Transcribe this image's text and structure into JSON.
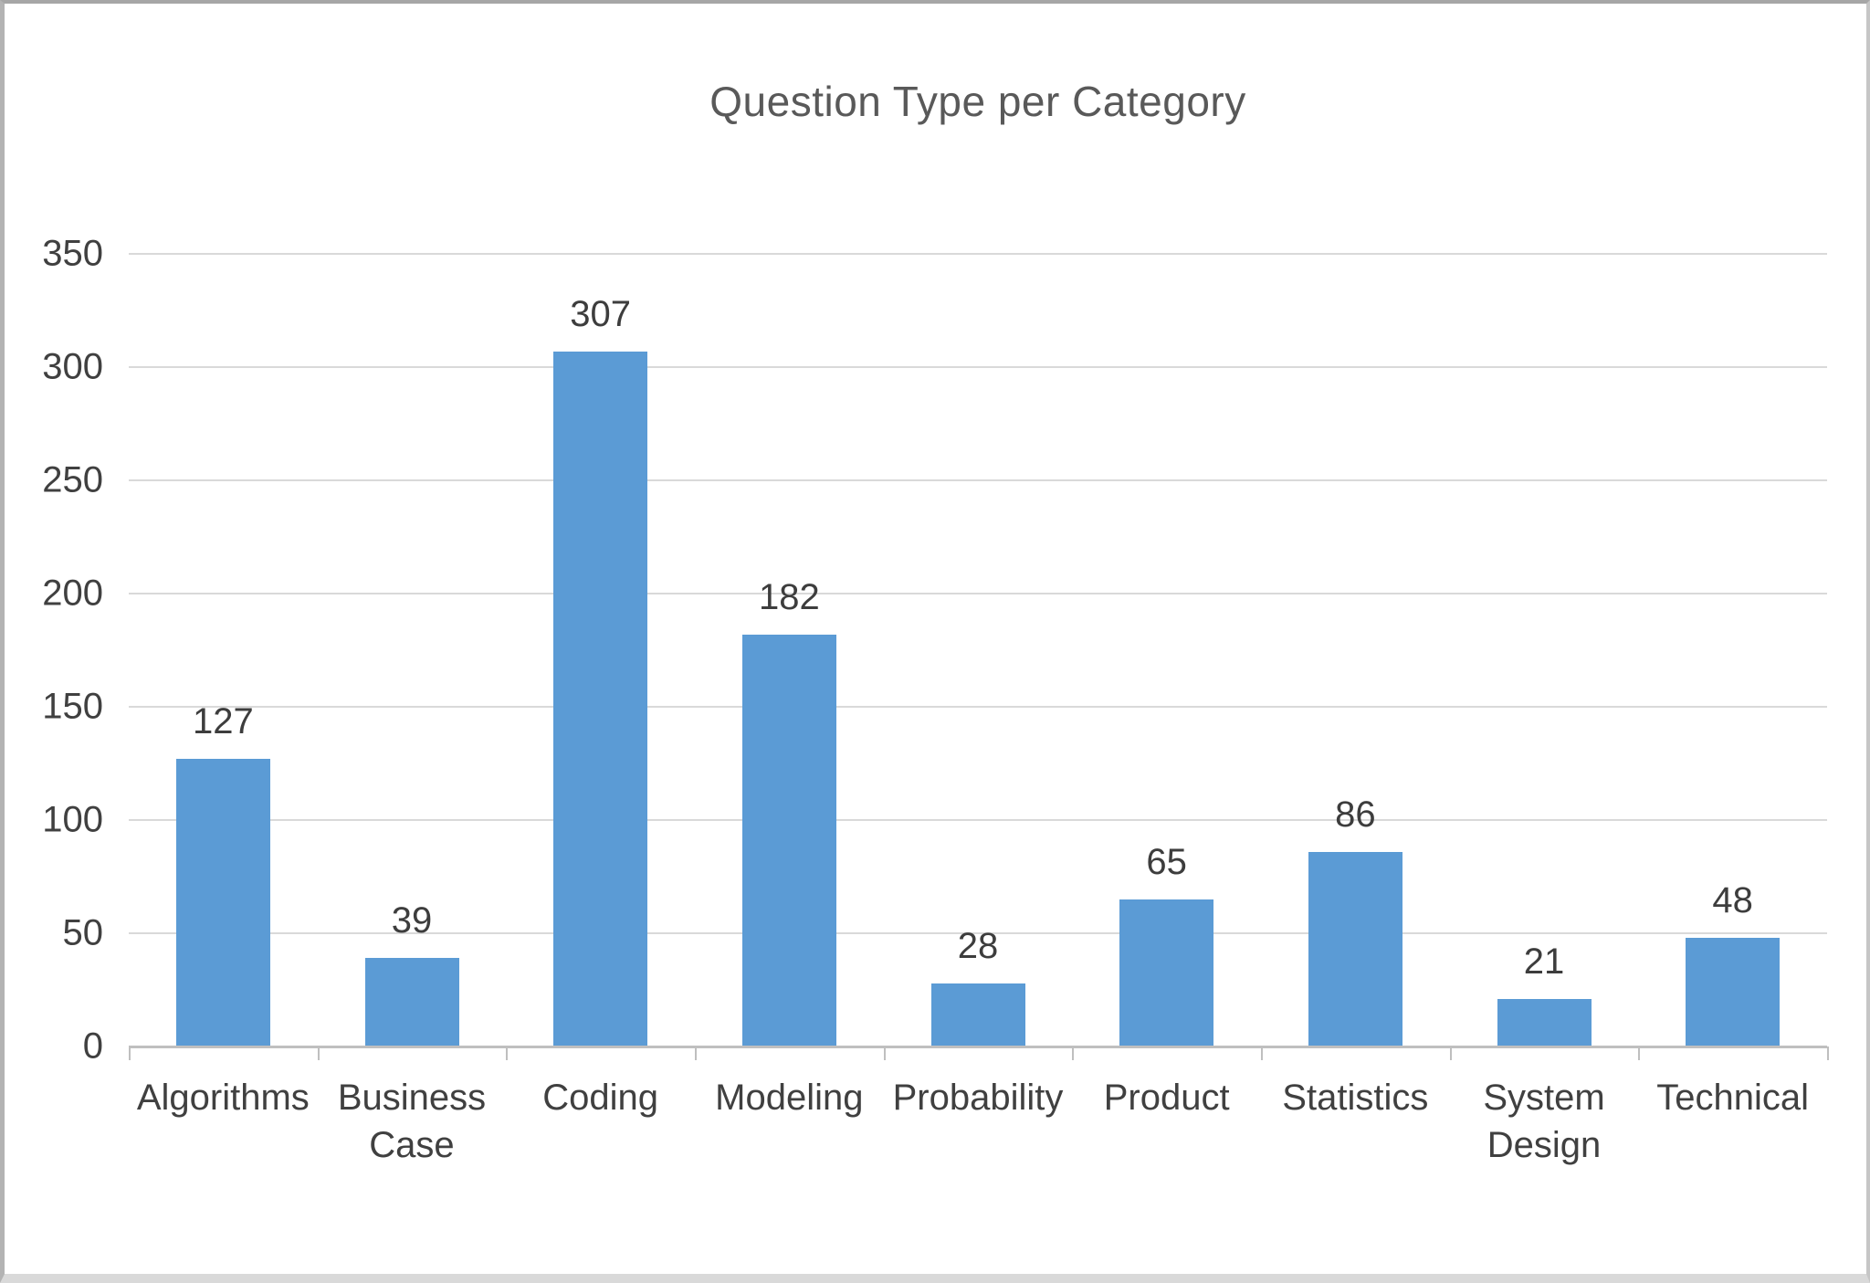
{
  "chart_data": {
    "type": "bar",
    "title": "Question Type per Category",
    "categories": [
      "Algorithms",
      "Business Case",
      "Coding",
      "Modeling",
      "Probability",
      "Product",
      "Statistics",
      "System Design",
      "Technical"
    ],
    "values": [
      127,
      39,
      307,
      182,
      28,
      65,
      86,
      21,
      48
    ],
    "xlabel": "",
    "ylabel": "",
    "ylim": [
      0,
      350
    ],
    "ytick_step": 50,
    "grid": true,
    "legend_position": "none",
    "bar_color": "#5B9BD5",
    "gridline_color": "#D9D9D9",
    "axis_line_color": "#BFBFBF",
    "tick_label_color": "#404040",
    "data_label_color": "#3d3d3d",
    "title_color": "#595959"
  }
}
